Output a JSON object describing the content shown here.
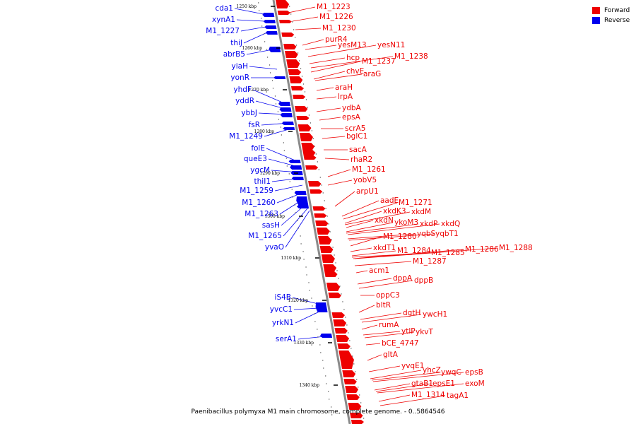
{
  "caption": "Paenibacillus polymyxa M1 main chromosome, complete genome. - 0..5864546",
  "colors": {
    "forward": "#ee0000",
    "reverse": "#0000ee",
    "backbone": "#8a8a8a"
  },
  "legend": [
    {
      "label": "Forward",
      "color": "#ee0000"
    },
    {
      "label": "Reverse",
      "color": "#0000ee"
    }
  ],
  "scale_ticks": [
    "1250 kbp",
    "1260 kbp",
    "1270 kbp",
    "1280 kbp",
    "1290 kbp",
    "1300 kbp",
    "1310 kbp",
    "1320 kbp",
    "1330 kbp",
    "1340 kbp"
  ],
  "reverse_labels": [
    "cda1",
    "xynA1",
    "M1_1227",
    "thiJ",
    "abrB5",
    "yiaH",
    "yonR",
    "yhdF",
    "yddR",
    "ybbJ",
    "fsR",
    "M1_1249",
    "folE",
    "queE3",
    "ygcM",
    "thiI1",
    "M1_1259",
    "M1_1260",
    "M1_1263",
    "sasH",
    "M1_1265",
    "yvaO",
    "iS4B",
    "yvcC1",
    "yrkN1",
    "serA1"
  ],
  "forward_labels": [
    "M1_1223",
    "M1_1226",
    "M1_1230",
    "purR4",
    "yesM13",
    "yesN11",
    "M1_1238",
    "hcp",
    "M1_1237",
    "chvE",
    "araG",
    "araH",
    "lrpA",
    "ydbA",
    "epsA",
    "scrA5",
    "bglC1",
    "sacA",
    "rhaR2",
    "M1_1261",
    "yobV5",
    "arpU1",
    "aadE",
    "M1_1271",
    "xkdK3",
    "xkdM",
    "xkdN",
    "ykoM3",
    "xkdP",
    "xkdQ",
    "yqbS",
    "yqbT1",
    "M1_1280",
    "xkdT1",
    "M1_1284",
    "M1_1285",
    "M1_1286",
    "M1_1288",
    "M1_1287",
    "acm1",
    "dppA",
    "dppB",
    "oppC3",
    "bltR",
    "dgtH",
    "ywcH1",
    "rumA",
    "ytlP",
    "ykvT",
    "bCE_4747",
    "gltA",
    "yvqE1",
    "yhcZ",
    "ywqC",
    "epsB",
    "gtaB1",
    "epsE1",
    "exoM",
    "M1_1314",
    "tagA1"
  ]
}
